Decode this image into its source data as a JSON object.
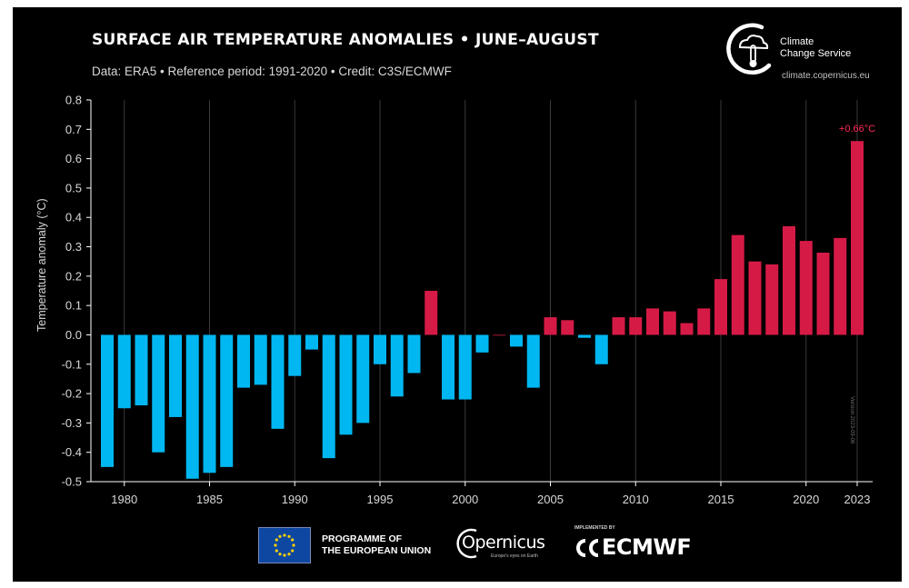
{
  "header": {
    "title": "SURFACE AIR TEMPERATURE ANOMALIES • JUNE–AUGUST",
    "subtitle": "Data: ERA5 • Reference period: 1991-2020 • Credit: C3S/ECMWF"
  },
  "branding": {
    "c3s_line1": "Climate",
    "c3s_line2": "Change Service",
    "c3s_url": "climate.copernicus.eu",
    "eu_line1": "PROGRAMME OF",
    "eu_line2": "THE EUROPEAN UNION",
    "copernicus_name": "Opernicus",
    "copernicus_tagline": "Europe's eyes on Earth",
    "ecmwf_implemented": "IMPLEMENTED BY",
    "ecmwf_name": "ECMWF"
  },
  "version_stamp": "Version 2023-09-06",
  "colors": {
    "background": "#000000",
    "negative": "#00b7f1",
    "positive": "#d61a46",
    "annotation": "#ff2a55",
    "text": "#d9d9d9",
    "grid": "#3a3a3a"
  },
  "chart_data": {
    "type": "bar",
    "title": "SURFACE AIR TEMPERATURE ANOMALIES • JUNE–AUGUST",
    "ylabel": "Temperature anomaly (°C)",
    "xlabel": "",
    "ylim": [
      -0.5,
      0.8
    ],
    "yticks": [
      "0.8",
      "0.7",
      "0.6",
      "0.5",
      "0.4",
      "0.3",
      "0.2",
      "0.1",
      "0.0",
      "-0.1",
      "-0.2",
      "-0.3",
      "-0.4",
      "-0.5"
    ],
    "xticks": [
      "1980",
      "1985",
      "1990",
      "1995",
      "2000",
      "2005",
      "2010",
      "2015",
      "2020",
      "2023"
    ],
    "grid": "vertical",
    "categories": [
      1979,
      1980,
      1981,
      1982,
      1983,
      1984,
      1985,
      1986,
      1987,
      1988,
      1989,
      1990,
      1991,
      1992,
      1993,
      1994,
      1995,
      1996,
      1997,
      1998,
      1999,
      2000,
      2001,
      2002,
      2003,
      2004,
      2005,
      2006,
      2007,
      2008,
      2009,
      2010,
      2011,
      2012,
      2013,
      2014,
      2015,
      2016,
      2017,
      2018,
      2019,
      2020,
      2021,
      2022,
      2023
    ],
    "values": [
      -0.45,
      -0.25,
      -0.24,
      -0.4,
      -0.28,
      -0.49,
      -0.47,
      -0.45,
      -0.18,
      -0.17,
      -0.32,
      -0.14,
      -0.05,
      -0.42,
      -0.34,
      -0.3,
      -0.1,
      -0.21,
      -0.13,
      0.15,
      -0.22,
      -0.22,
      -0.06,
      0.0,
      -0.04,
      -0.18,
      0.06,
      0.05,
      -0.01,
      -0.1,
      0.06,
      0.06,
      0.09,
      0.08,
      0.04,
      0.09,
      0.19,
      0.34,
      0.25,
      0.24,
      0.37,
      0.32,
      0.28,
      0.33,
      0.66
    ],
    "annotation": {
      "category": 2023,
      "text": "+0.66°C"
    }
  }
}
